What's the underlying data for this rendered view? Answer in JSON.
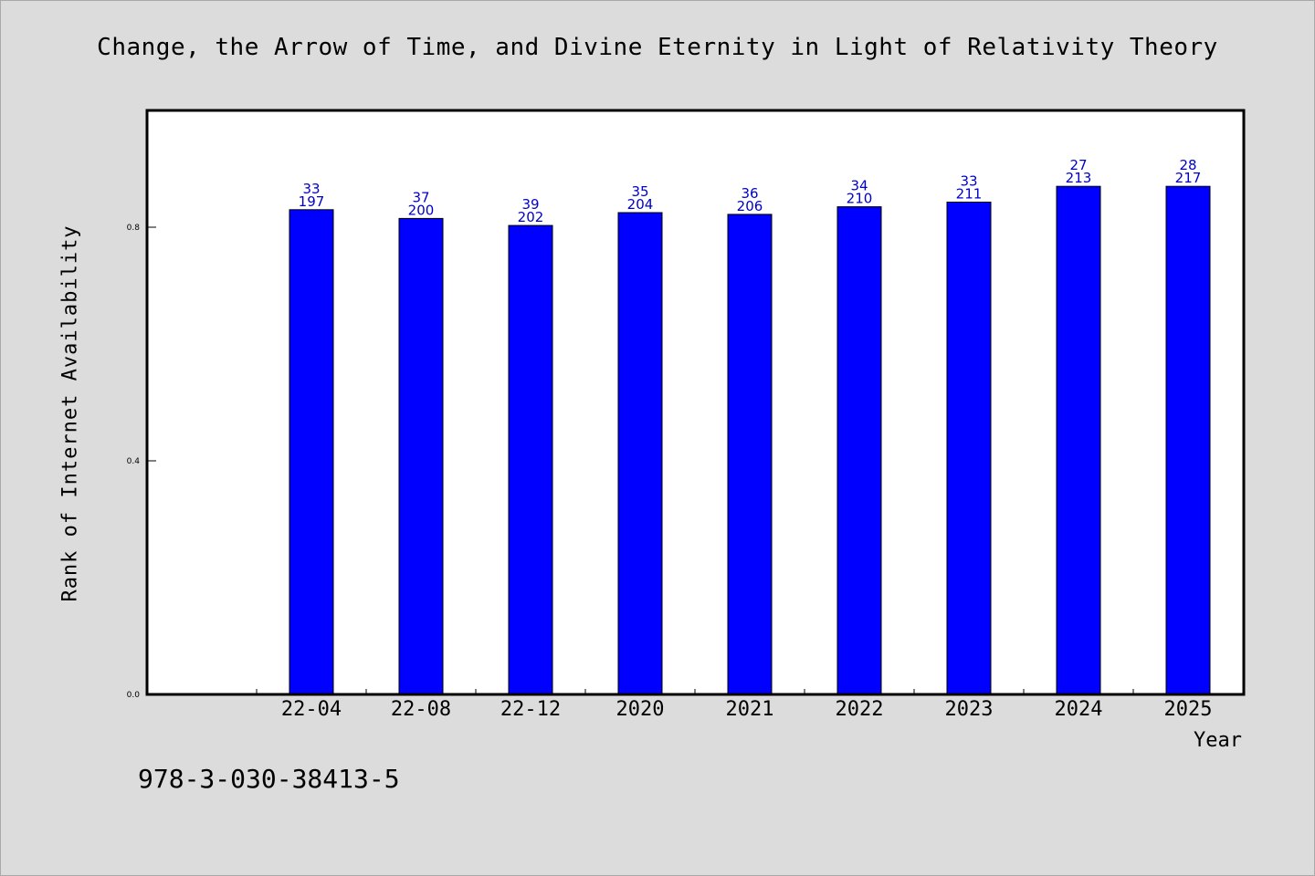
{
  "chart_data": {
    "type": "bar",
    "title": "Change, the Arrow of Time, and Divine Eternity in Light of Relativity Theory",
    "xlabel": "Year",
    "ylabel": "Rank of Internet Availability",
    "categories": [
      "22-04",
      "22-08",
      "22-12",
      "2020",
      "2021",
      "2022",
      "2023",
      "2024",
      "2025"
    ],
    "values": [
      0.83,
      0.815,
      0.803,
      0.825,
      0.822,
      0.835,
      0.843,
      0.87,
      0.87
    ],
    "label_top": [
      "33",
      "37",
      "39",
      "35",
      "36",
      "34",
      "33",
      "27",
      "28"
    ],
    "label_bottom": [
      "197",
      "200",
      "202",
      "204",
      "206",
      "210",
      "211",
      "213",
      "217"
    ],
    "ylim": [
      0,
      1.0
    ],
    "yticks": [
      0.0,
      0.4,
      0.8
    ],
    "ytick_labels": [
      "0.0",
      "0.4",
      "0.8"
    ],
    "grid": false,
    "bar_color": "#0000ff",
    "label_color": "#0000cc"
  },
  "footer": {
    "isbn": "978-3-030-38413-5"
  }
}
